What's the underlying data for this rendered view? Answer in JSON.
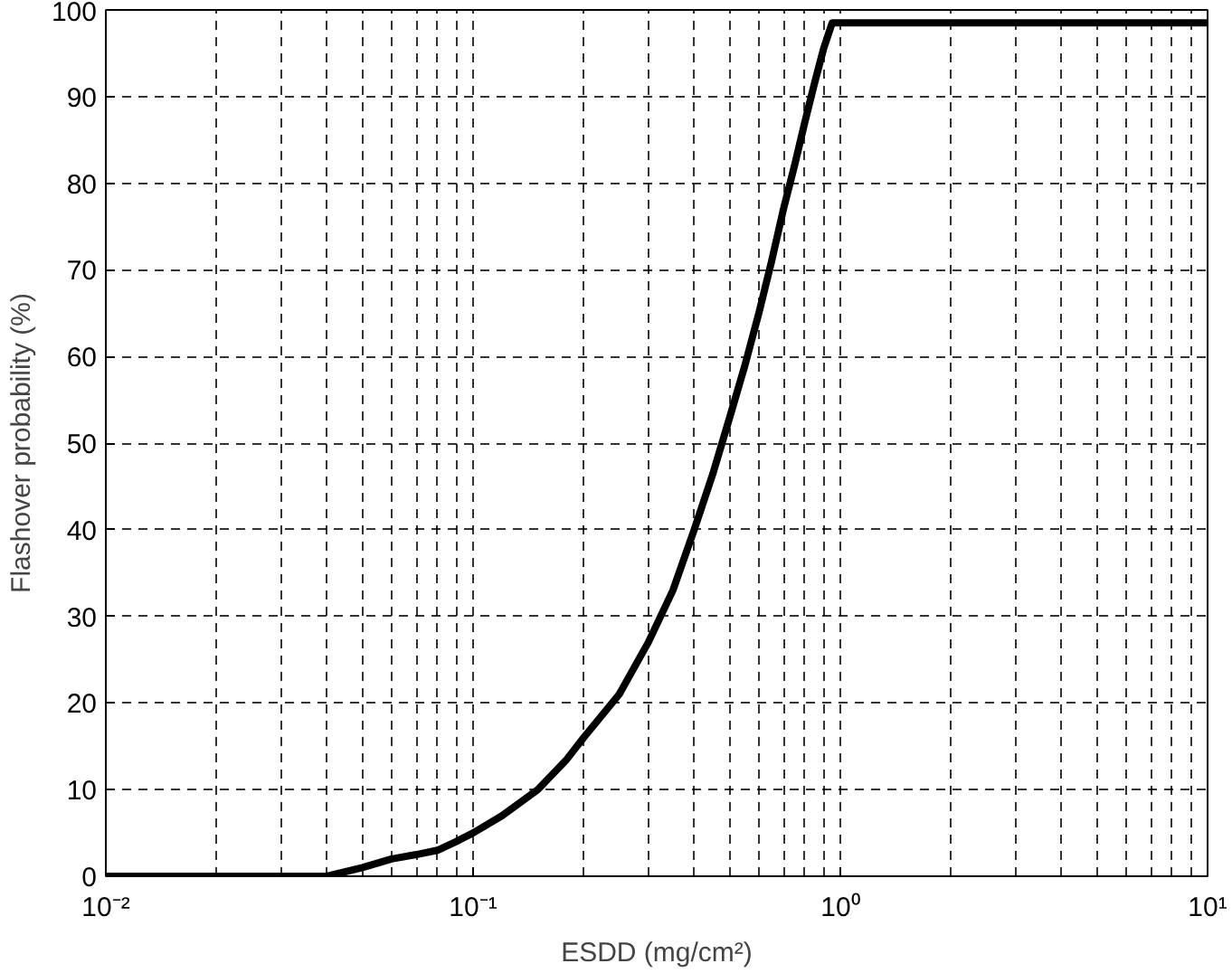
{
  "chart_data": {
    "type": "line",
    "xlabel": "ESDD (mg/cm²)",
    "ylabel": "Flashover probability (%)",
    "log": "x",
    "grid": true,
    "marker": "none",
    "line_style": "solid",
    "xlim": [
      0.01,
      10
    ],
    "ylim": [
      0,
      100
    ],
    "xticks": [
      {
        "value": 0.01,
        "label": "10⁻²"
      },
      {
        "value": 0.1,
        "label": "10⁻¹"
      },
      {
        "value": 1,
        "label": "10⁰"
      },
      {
        "value": 10,
        "label": "10¹"
      }
    ],
    "yticks": [
      0,
      10,
      20,
      30,
      40,
      50,
      60,
      70,
      80,
      90,
      100
    ],
    "series": [
      {
        "color": "#000000",
        "x": [
          0.01,
          0.02,
          0.04,
          0.05,
          0.06,
          0.07,
          0.08,
          0.09,
          0.1,
          0.12,
          0.15,
          0.18,
          0.2,
          0.25,
          0.3,
          0.35,
          0.4,
          0.45,
          0.5,
          0.55,
          0.6,
          0.65,
          0.7,
          0.75,
          0.8,
          0.85,
          0.9,
          0.95,
          1,
          2,
          5,
          10
        ],
        "values": [
          0,
          0,
          0,
          1,
          2,
          2.5,
          3,
          4,
          5,
          7,
          10,
          13.5,
          16,
          21,
          27,
          33,
          40,
          46.5,
          53,
          59,
          65,
          71,
          77,
          82,
          87,
          91.5,
          95.5,
          98.5,
          98.5,
          98.5,
          98.5,
          98.5
        ]
      }
    ]
  }
}
